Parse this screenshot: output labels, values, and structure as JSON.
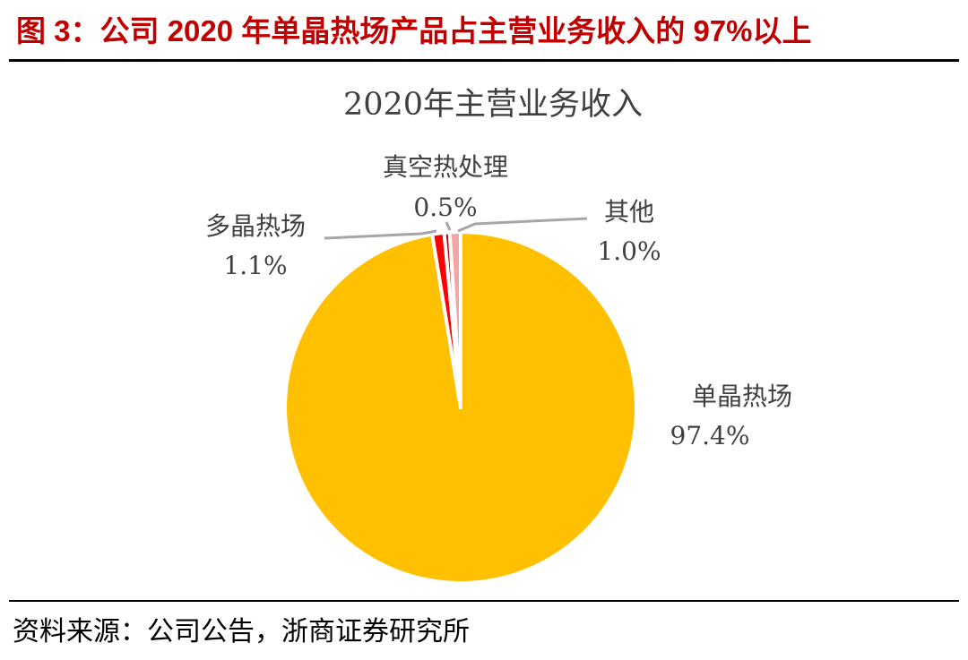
{
  "figure": {
    "number_label": "图 3：",
    "title": "公司 2020 年单晶热场产品占主营业务收入的 97%以上",
    "source": "资料来源：公司公告，浙商证券研究所"
  },
  "chart_data": {
    "type": "pie",
    "title": "2020年主营业务收入",
    "slices": [
      {
        "name": "单晶热场",
        "value": 97.4,
        "label": "97.4%",
        "color": "#ffc000"
      },
      {
        "name": "多晶热场",
        "value": 1.1,
        "label": "1.1%",
        "color": "#ff0000"
      },
      {
        "name": "真空热处理",
        "value": 0.5,
        "label": "0.5%",
        "color": "#c00000"
      },
      {
        "name": "其他",
        "value": 1.0,
        "label": "1.0%",
        "color": "#f4a6a6"
      }
    ],
    "start": "12 o'clock",
    "direction": "clockwise",
    "leader_line_color": "#a6a6a6"
  }
}
